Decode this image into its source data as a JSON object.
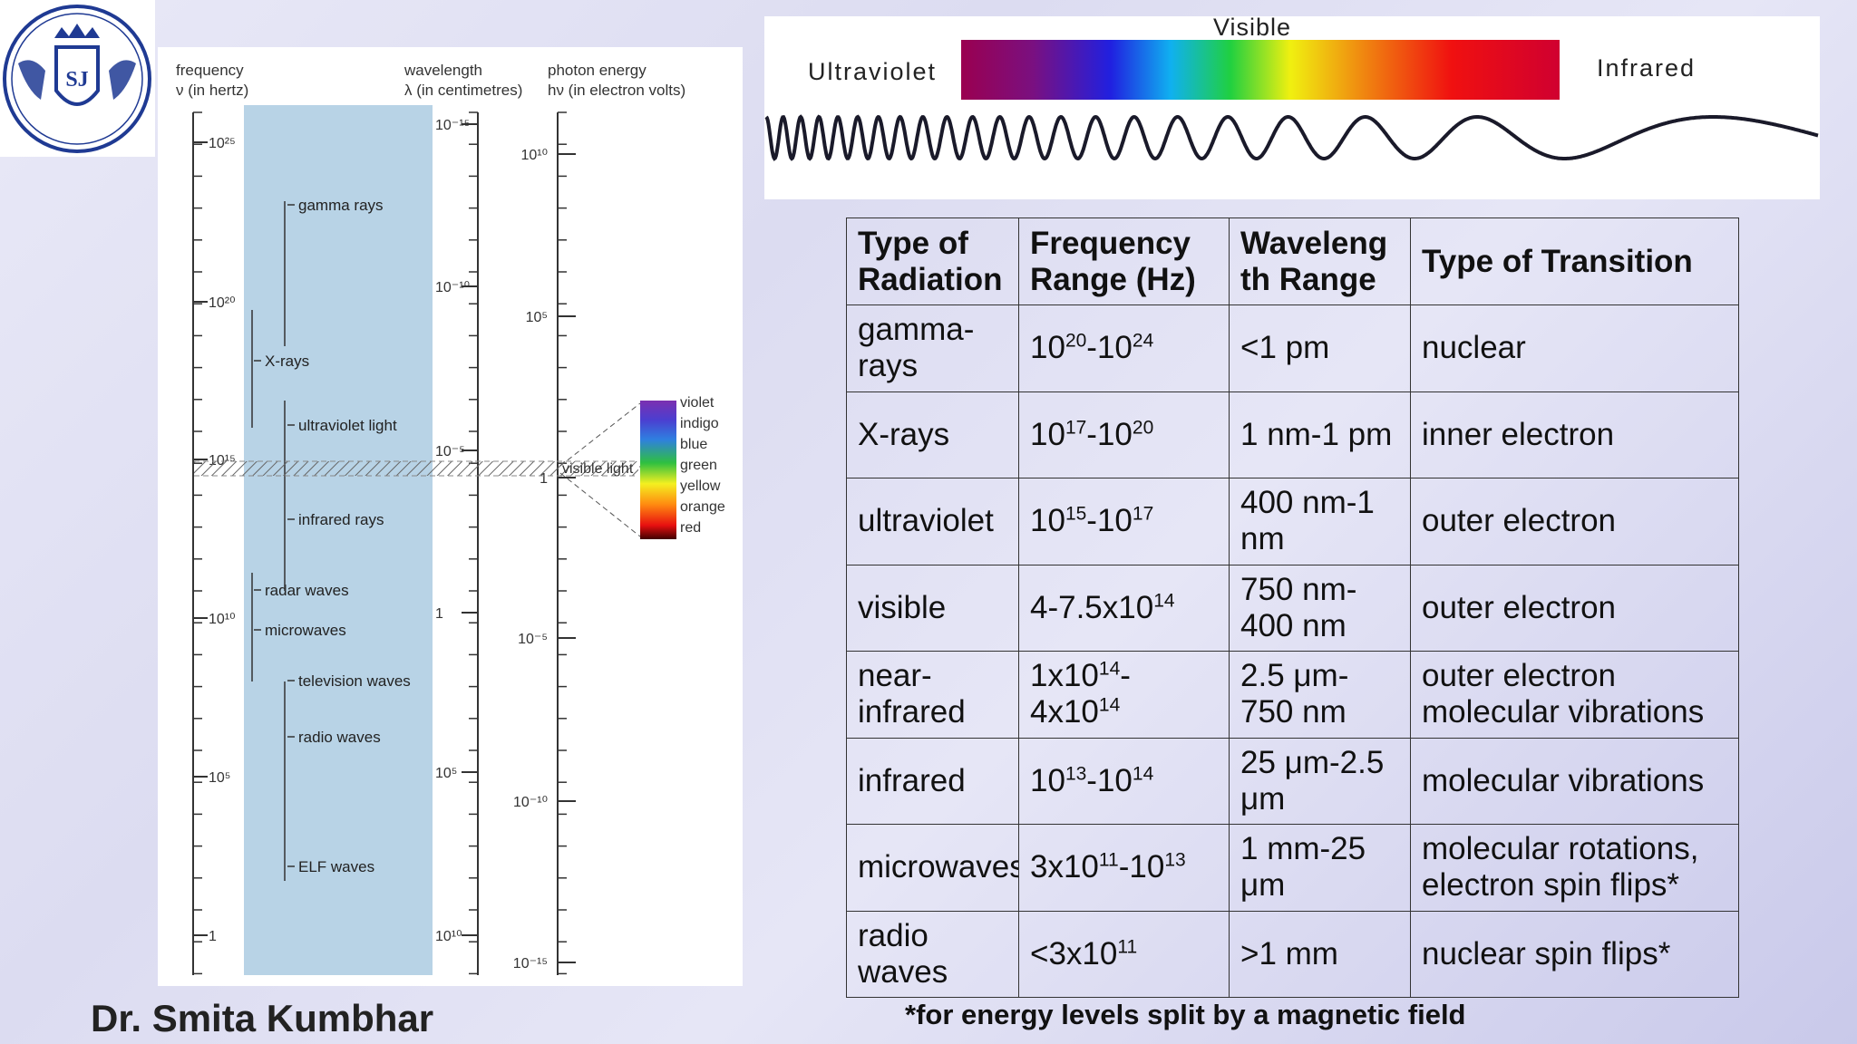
{
  "logo": {
    "letters": "SJ"
  },
  "spectrum_chart": {
    "col_headers": {
      "frequency": [
        "frequency",
        "ν (in hertz)"
      ],
      "wavelength": [
        "wavelength",
        "λ (in centimetres)"
      ],
      "photon_energy": [
        "photon energy",
        "hν (in electron volts)"
      ]
    },
    "frequency_ticks": [
      "10²⁵",
      "10²⁰",
      "10¹⁵",
      "10¹⁰",
      "10⁵",
      "1"
    ],
    "wavelength_ticks": [
      "10⁻¹⁵",
      "10⁻¹⁰",
      "10⁻⁵",
      "1",
      "10⁵",
      "10¹⁰"
    ],
    "energy_ticks": [
      "10¹⁰",
      "10⁵",
      "1",
      "10⁻⁵",
      "10⁻¹⁰",
      "10⁻¹⁵"
    ],
    "bands": [
      "gamma rays",
      "X-rays",
      "ultraviolet light",
      "infrared rays",
      "radar waves",
      "microwaves",
      "television waves",
      "radio waves",
      "ELF waves"
    ],
    "visible_label": "visible light",
    "colors": [
      "violet",
      "indigo",
      "blue",
      "green",
      "yellow",
      "orange",
      "red"
    ]
  },
  "visible_strip": {
    "visible": "Visible",
    "ultraviolet": "Ultraviolet",
    "infrared": "Infrared"
  },
  "table": {
    "headers": [
      "Type of Radiation",
      "Frequency Range (Hz)",
      "Waveleng th Range",
      "Type of Transition"
    ],
    "rows": [
      {
        "type": "gamma-rays",
        "freq": {
          "a": "10",
          "ae": "20",
          "b": "10",
          "be": "24"
        },
        "wavelength": "<1 pm",
        "transition": "nuclear"
      },
      {
        "type": "X-rays",
        "freq": {
          "a": "10",
          "ae": "17",
          "b": "10",
          "be": "20"
        },
        "wavelength": "1 nm-1 pm",
        "transition": "inner electron"
      },
      {
        "type": "ultraviolet",
        "freq": {
          "a": "10",
          "ae": "15",
          "b": "10",
          "be": "17"
        },
        "wavelength": "400 nm-1 nm",
        "transition": "outer electron"
      },
      {
        "type": "visible",
        "freq": {
          "a": "4-7.5x10",
          "ae": "14",
          "b": "",
          "be": ""
        },
        "wavelength": "750 nm-400 nm",
        "transition": "outer electron"
      },
      {
        "type": "near-infrared",
        "freq": {
          "a": "1x10",
          "ae": "14",
          "b": "4x10",
          "be": "14"
        },
        "wavelength": "2.5 μm-750 nm",
        "transition": "outer electron molecular vibrations"
      },
      {
        "type": "infrared",
        "freq": {
          "a": "10",
          "ae": "13",
          "b": "10",
          "be": "14"
        },
        "wavelength": "25 μm-2.5 μm",
        "transition": "molecular vibrations"
      },
      {
        "type": "microwaves",
        "freq": {
          "a": "3x10",
          "ae": "11",
          "b": "10",
          "be": "13"
        },
        "wavelength": "1 mm-25 μm",
        "transition": "molecular rotations, electron spin flips*"
      },
      {
        "type": "radio waves",
        "freq": {
          "a": "<3x10",
          "ae": "11",
          "b": "",
          "be": ""
        },
        "wavelength": ">1 mm",
        "transition": "nuclear spin flips*"
      }
    ]
  },
  "author": "Dr. Smita Kumbhar",
  "footnote": "*for energy levels split by a magnetic field"
}
